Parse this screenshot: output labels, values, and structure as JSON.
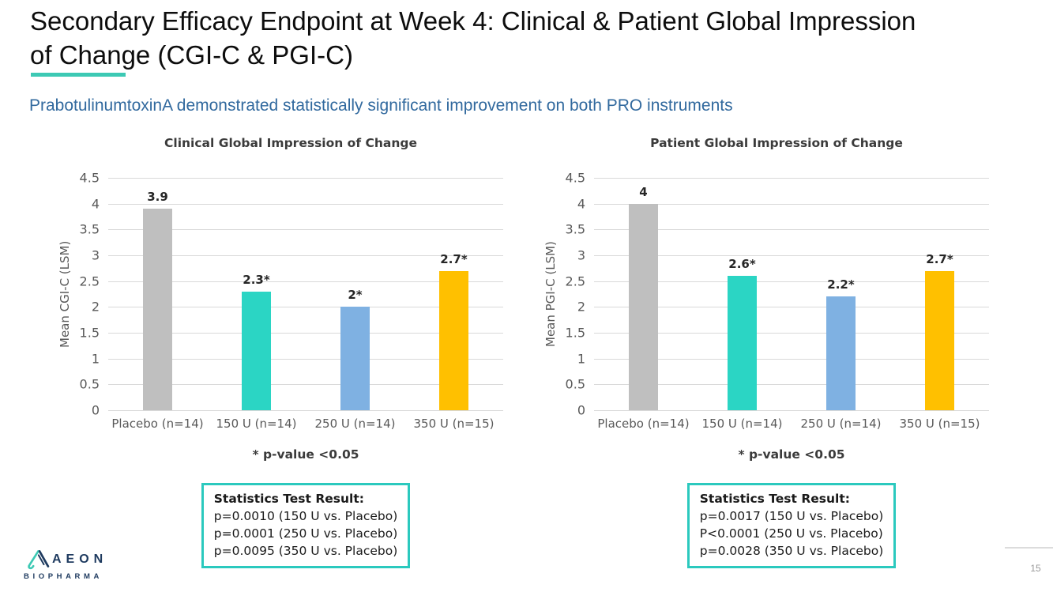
{
  "slide": {
    "title": "Secondary Efficacy Endpoint at Week 4: Clinical & Patient Global Impression of Change (CGI-C & PGI-C)",
    "subtitle": "PrabotulinumtoxinA demonstrated statistically significant improvement on both PRO instruments",
    "page_number": "15"
  },
  "logo": {
    "name": "AEON",
    "sub": "BIOPHARMA"
  },
  "colors": {
    "accent_teal": "#3dc9b4",
    "stats_box_border": "#2bc9be",
    "subtitle_blue": "#31699e",
    "gridline": "#d9d9d9",
    "axis_text": "#595959",
    "bar_gray": "#bfbfbf",
    "bar_teal": "#2bd5c4",
    "bar_blue": "#7fb1e2",
    "bar_yellow": "#ffc000",
    "logo_navy": "#1e3a5f"
  },
  "chart_data": [
    {
      "type": "bar",
      "title": "Clinical Global Impression of Change",
      "ylabel": "Mean CGI-C (LSM)",
      "ylim": [
        0,
        4.5
      ],
      "ytick_step": 0.5,
      "grid": true,
      "categories": [
        "Placebo (n=14)",
        "150 U (n=14)",
        "250 U (n=14)",
        "350 U (n=15)"
      ],
      "values": [
        3.9,
        2.3,
        2.0,
        2.7
      ],
      "value_labels": [
        "3.9",
        "2.3*",
        "2*",
        "2.7*"
      ],
      "bar_colors": [
        "#bfbfbf",
        "#2bd5c4",
        "#7fb1e2",
        "#ffc000"
      ],
      "footnote": "* p-value <0.05",
      "stats_box": {
        "heading": "Statistics Test Result:",
        "lines": [
          "p=0.0010 (150 U vs. Placebo)",
          "p=0.0001 (250 U vs. Placebo)",
          "p=0.0095 (350 U vs. Placebo)"
        ]
      }
    },
    {
      "type": "bar",
      "title": "Patient Global Impression of Change",
      "ylabel": "Mean PGI-C (LSM)",
      "ylim": [
        0,
        4.5
      ],
      "ytick_step": 0.5,
      "grid": true,
      "categories": [
        "Placebo (n=14)",
        "150 U (n=14)",
        "250 U (n=14)",
        "350 U (n=15)"
      ],
      "values": [
        4.0,
        2.6,
        2.2,
        2.7
      ],
      "value_labels": [
        "4",
        "2.6*",
        "2.2*",
        "2.7*"
      ],
      "bar_colors": [
        "#bfbfbf",
        "#2bd5c4",
        "#7fb1e2",
        "#ffc000"
      ],
      "footnote": "* p-value <0.05",
      "stats_box": {
        "heading": "Statistics Test Result:",
        "lines": [
          "p=0.0017 (150 U vs. Placebo)",
          "P<0.0001 (250 U vs. Placebo)",
          "p=0.0028 (350 U vs. Placebo)"
        ]
      }
    }
  ]
}
